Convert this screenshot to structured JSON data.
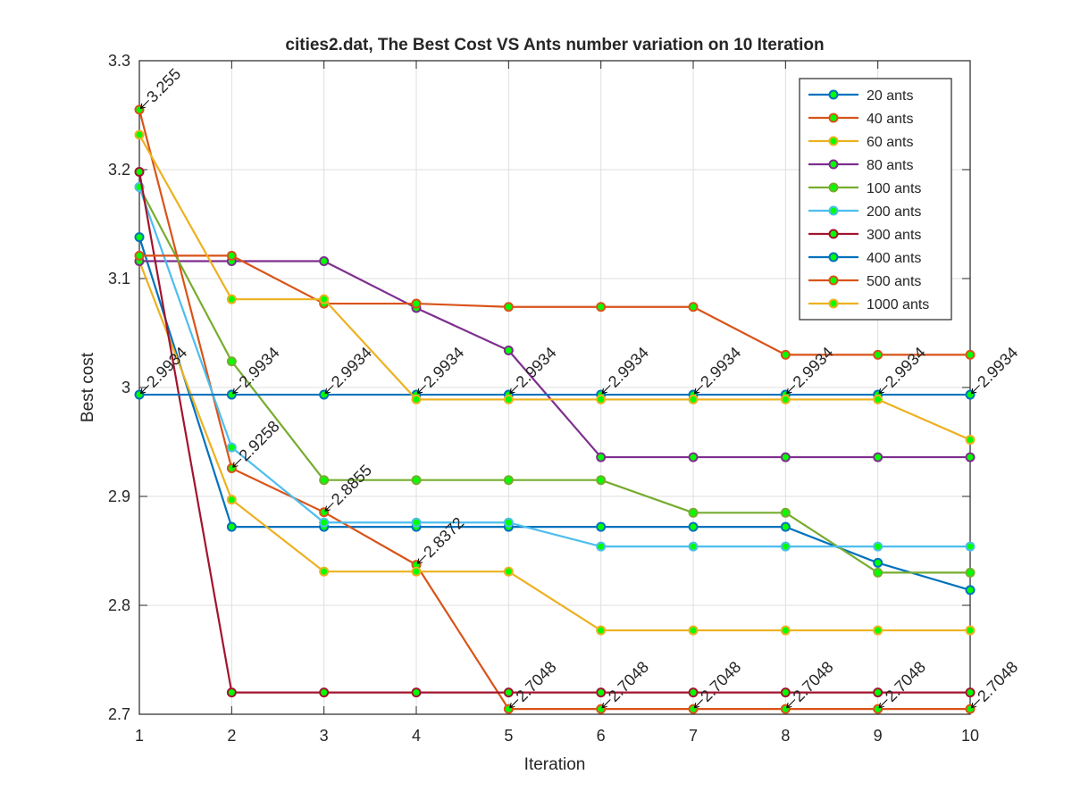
{
  "chart_data": {
    "type": "line",
    "title": "cities2.dat, The Best Cost  VS Ants number variation on 10 Iteration",
    "xlabel": "Iteration",
    "ylabel": "Best cost",
    "xlim": [
      1,
      10
    ],
    "ylim": [
      2.7,
      3.3
    ],
    "x_ticks": [
      1,
      2,
      3,
      4,
      5,
      6,
      7,
      8,
      9,
      10
    ],
    "y_ticks": [
      2.7,
      2.8,
      2.9,
      3.0,
      3.1,
      3.2,
      3.3
    ],
    "y_tick_labels": [
      "2.7",
      "2.8",
      "2.9",
      "3",
      "3.1",
      "3.2",
      "3.3"
    ],
    "grid": true,
    "legend_position": "top-right",
    "marker_face_color": "#00ff00",
    "x": [
      1,
      2,
      3,
      4,
      5,
      6,
      7,
      8,
      9,
      10
    ],
    "series": [
      {
        "name": "20 ants",
        "color": "#0072BD",
        "values": [
          3.138,
          2.872,
          2.872,
          2.872,
          2.872,
          2.872,
          2.872,
          2.872,
          2.839,
          2.814
        ]
      },
      {
        "name": "40 ants",
        "color": "#D95319",
        "values": [
          3.255,
          2.9258,
          2.8855,
          2.8372,
          2.7048,
          2.7048,
          2.7048,
          2.7048,
          2.7048,
          2.7048
        ]
      },
      {
        "name": "60 ants",
        "color": "#EDB120",
        "values": [
          3.116,
          2.897,
          2.831,
          2.831,
          2.831,
          2.777,
          2.777,
          2.777,
          2.777,
          2.777
        ]
      },
      {
        "name": "80 ants",
        "color": "#7E2F8E",
        "values": [
          3.116,
          3.116,
          3.116,
          3.073,
          3.034,
          2.936,
          2.936,
          2.936,
          2.936,
          2.936
        ]
      },
      {
        "name": "100 ants",
        "color": "#77AC30",
        "values": [
          3.184,
          3.024,
          2.915,
          2.915,
          2.915,
          2.915,
          2.885,
          2.885,
          2.83,
          2.83
        ]
      },
      {
        "name": "200 ants",
        "color": "#4DBEEE",
        "values": [
          3.184,
          2.945,
          2.876,
          2.876,
          2.876,
          2.854,
          2.854,
          2.854,
          2.854,
          2.854
        ]
      },
      {
        "name": "300 ants",
        "color": "#A2142F",
        "values": [
          3.198,
          2.72,
          2.72,
          2.72,
          2.72,
          2.72,
          2.72,
          2.72,
          2.72,
          2.72
        ]
      },
      {
        "name": "400 ants",
        "color": "#0072BD",
        "values": [
          2.9934,
          2.9934,
          2.9934,
          2.9934,
          2.9934,
          2.9934,
          2.9934,
          2.9934,
          2.9934,
          2.9934
        ]
      },
      {
        "name": "500 ants",
        "color": "#D95319",
        "values": [
          3.121,
          3.121,
          3.077,
          3.077,
          3.074,
          3.074,
          3.074,
          3.03,
          3.03,
          3.03
        ]
      },
      {
        "name": "1000 ants",
        "color": "#EDB120",
        "values": [
          3.232,
          3.081,
          3.081,
          2.989,
          2.989,
          2.989,
          2.989,
          2.989,
          2.989,
          2.952
        ]
      }
    ],
    "annotations": [
      {
        "x": 1,
        "y": 3.255,
        "text": "3.255"
      },
      {
        "x": 1,
        "y": 2.9934,
        "text": "2.9934"
      },
      {
        "x": 2,
        "y": 2.9934,
        "text": "2.9934"
      },
      {
        "x": 3,
        "y": 2.9934,
        "text": "2.9934"
      },
      {
        "x": 4,
        "y": 2.9934,
        "text": "2.9934"
      },
      {
        "x": 5,
        "y": 2.9934,
        "text": "2.9934"
      },
      {
        "x": 6,
        "y": 2.9934,
        "text": "2.9934"
      },
      {
        "x": 7,
        "y": 2.9934,
        "text": "2.9934"
      },
      {
        "x": 8,
        "y": 2.9934,
        "text": "2.9934"
      },
      {
        "x": 9,
        "y": 2.9934,
        "text": "2.9934"
      },
      {
        "x": 10,
        "y": 2.9934,
        "text": "2.9934"
      },
      {
        "x": 2,
        "y": 2.9258,
        "text": "2.9258"
      },
      {
        "x": 3,
        "y": 2.8855,
        "text": "2.8855"
      },
      {
        "x": 4,
        "y": 2.8372,
        "text": "2.8372"
      },
      {
        "x": 5,
        "y": 2.7048,
        "text": "2.7048"
      },
      {
        "x": 6,
        "y": 2.7048,
        "text": "2.7048"
      },
      {
        "x": 7,
        "y": 2.7048,
        "text": "2.7048"
      },
      {
        "x": 8,
        "y": 2.7048,
        "text": "2.7048"
      },
      {
        "x": 9,
        "y": 2.7048,
        "text": "2.7048"
      },
      {
        "x": 10,
        "y": 2.7048,
        "text": "2.7048"
      }
    ]
  }
}
